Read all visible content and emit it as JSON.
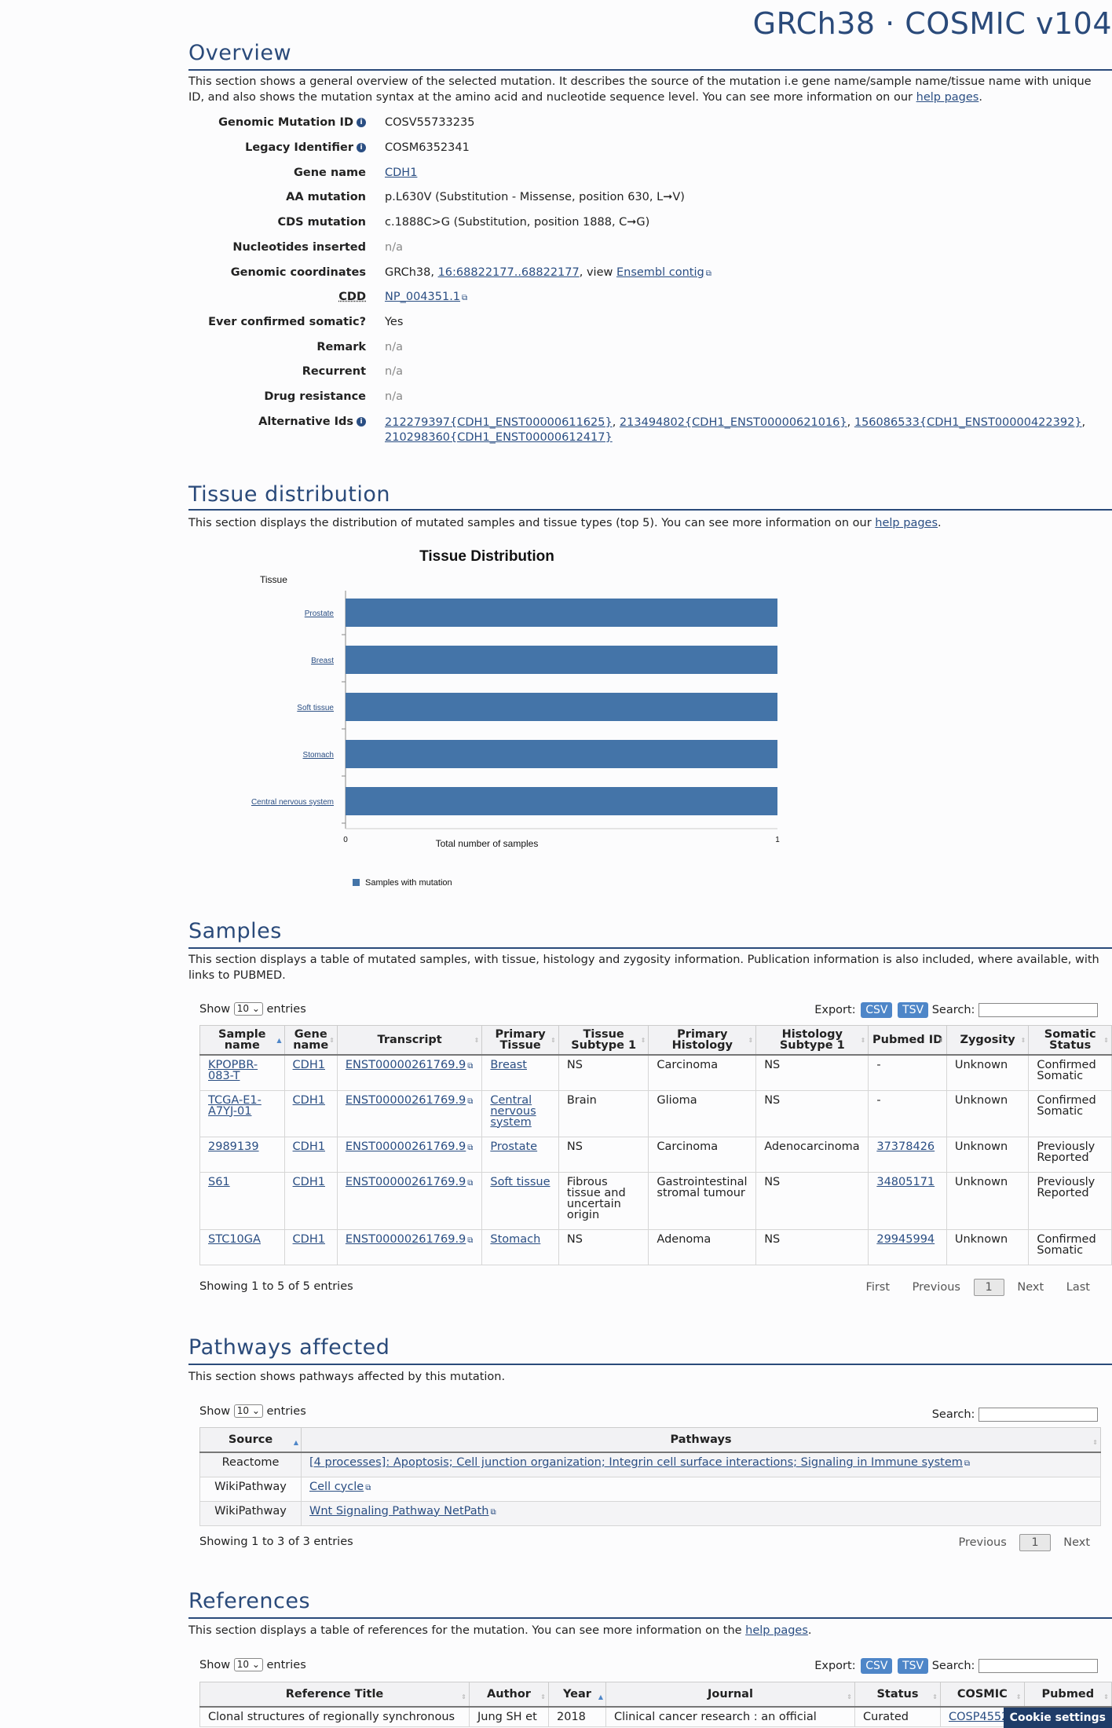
{
  "header": {
    "brand": "GRCh38 · COSMIC v104"
  },
  "overview": {
    "title": "Overview",
    "intro_part1": "This section shows a general overview of the selected mutation. It describes the source of the mutation i.e gene name/sample name/tissue name with unique ID, and also shows the mutation syntax at the amino acid and nucleotide sequence level. You can see more information on our ",
    "help_link": "help pages",
    "intro_end": ".",
    "fields": {
      "genomic_mutation_id": {
        "label": "Genomic Mutation ID",
        "value": "COSV55733235"
      },
      "legacy_identifier": {
        "label": "Legacy Identifier",
        "value": "COSM6352341"
      },
      "gene_name": {
        "label": "Gene name",
        "value": "CDH1"
      },
      "aa_mutation": {
        "label": "AA mutation",
        "value": "p.L630V (Substitution - Missense, position 630, L➞V)"
      },
      "cds_mutation": {
        "label": "CDS mutation",
        "value": "c.1888C>G (Substitution, position 1888, C➞G)"
      },
      "nucleotides_inserted": {
        "label": "Nucleotides inserted",
        "value": "n/a"
      },
      "genomic_coordinates": {
        "label": "Genomic coordinates",
        "prefix": "GRCh38, ",
        "coord_link": "16:68822177..68822177",
        "mid": ", view ",
        "ensembl_link": "Ensembl contig"
      },
      "cdd": {
        "label": "CDD",
        "value": "NP_004351.1"
      },
      "ever_confirmed_somatic": {
        "label": "Ever confirmed somatic?",
        "value": "Yes"
      },
      "remark": {
        "label": "Remark",
        "value": "n/a"
      },
      "recurrent": {
        "label": "Recurrent",
        "value": "n/a"
      },
      "drug_resistance": {
        "label": "Drug resistance",
        "value": "n/a"
      },
      "alternative_ids": {
        "label": "Alternative Ids",
        "ids": [
          "212279397{CDH1_ENST00000611625}",
          "213494802{CDH1_ENST00000621016}",
          "156086533{CDH1_ENST00000422392}",
          "210298360{CDH1_ENST00000612417}"
        ]
      }
    }
  },
  "tissue": {
    "title": "Tissue distribution",
    "intro": "This section displays the distribution of mutated samples and tissue types (top 5). You can see more information on our ",
    "help_link": "help pages",
    "intro_end": "."
  },
  "chart_data": {
    "type": "bar",
    "orientation": "horizontal",
    "title": "Tissue Distribution",
    "ylabel": "Tissue",
    "xlabel": "Total number of samples",
    "categories": [
      "Prostate",
      "Breast",
      "Soft tissue",
      "Stomach",
      "Central nervous system"
    ],
    "series": [
      {
        "name": "Samples with mutation",
        "values": [
          1,
          1,
          1,
          1,
          1
        ]
      }
    ],
    "xlim": [
      0,
      1
    ],
    "x_ticks": [
      "0",
      "1"
    ],
    "legend": "bottom-left",
    "bar_color": "#4474a8"
  },
  "samples": {
    "title": "Samples",
    "intro": "This section displays a table of mutated samples, with tissue, histology and zygosity information. Publication information is also included, where available, with links to PUBMED.",
    "show": "Show",
    "entries_select": "10",
    "entries": "entries",
    "export": "Export:",
    "csv": "CSV",
    "tsv": "TSV",
    "search": "Search:",
    "columns": [
      "Sample name",
      "Gene name",
      "Transcript",
      "Primary Tissue",
      "Tissue Subtype 1",
      "Primary Histology",
      "Histology Subtype 1",
      "Pubmed ID",
      "Zygosity",
      "Somatic Status"
    ],
    "rows": [
      {
        "sample": "KPOPBR-083-T",
        "gene": "CDH1",
        "transcript": "ENST00000261769.9",
        "tissue": "Breast",
        "subtype": "NS",
        "histology": "Carcinoma",
        "hist_sub": "NS",
        "pubmed": "-",
        "zygosity": "Unknown",
        "status": "Confirmed Somatic"
      },
      {
        "sample": "TCGA-E1-A7YJ-01",
        "gene": "CDH1",
        "transcript": "ENST00000261769.9",
        "tissue": "Central nervous system",
        "subtype": "Brain",
        "histology": "Glioma",
        "hist_sub": "NS",
        "pubmed": "-",
        "zygosity": "Unknown",
        "status": "Confirmed Somatic"
      },
      {
        "sample": "2989139",
        "gene": "CDH1",
        "transcript": "ENST00000261769.9",
        "tissue": "Prostate",
        "subtype": "NS",
        "histology": "Carcinoma",
        "hist_sub": "Adenocarcinoma",
        "pubmed": "37378426",
        "zygosity": "Unknown",
        "status": "Previously Reported"
      },
      {
        "sample": "S61",
        "gene": "CDH1",
        "transcript": "ENST00000261769.9",
        "tissue": "Soft tissue",
        "subtype": "Fibrous tissue and uncertain origin",
        "histology": "Gastrointestinal stromal tumour",
        "hist_sub": "NS",
        "pubmed": "34805171",
        "zygosity": "Unknown",
        "status": "Previously Reported"
      },
      {
        "sample": "STC10GA",
        "gene": "CDH1",
        "transcript": "ENST00000261769.9",
        "tissue": "Stomach",
        "subtype": "NS",
        "histology": "Adenoma",
        "hist_sub": "NS",
        "pubmed": "29945994",
        "zygosity": "Unknown",
        "status": "Confirmed Somatic"
      }
    ],
    "info": "Showing 1 to 5 of 5 entries",
    "pager": {
      "first": "First",
      "previous": "Previous",
      "current": "1",
      "next": "Next",
      "last": "Last"
    }
  },
  "pathways": {
    "title": "Pathways affected",
    "intro": "This section shows pathways affected by this mutation.",
    "show": "Show",
    "entries_select": "10",
    "entries": "entries",
    "search": "Search:",
    "columns": [
      "Source",
      "Pathways"
    ],
    "rows": [
      {
        "source": "Reactome",
        "pathway": "[4 processes]: Apoptosis; Cell junction organization; Integrin cell surface interactions; Signaling in Immune system"
      },
      {
        "source": "WikiPathway",
        "pathway": "Cell cycle"
      },
      {
        "source": "WikiPathway",
        "pathway": "Wnt Signaling Pathway NetPath"
      }
    ],
    "info": "Showing 1 to 3 of 3 entries",
    "pager": {
      "previous": "Previous",
      "current": "1",
      "next": "Next"
    }
  },
  "references": {
    "title": "References",
    "intro": "This section displays a table of references for the mutation. You can see more information on the ",
    "help_link": "help pages",
    "intro_end": ".",
    "show": "Show",
    "entries_select": "10",
    "entries": "entries",
    "export": "Export:",
    "csv": "CSV",
    "tsv": "TSV",
    "search": "Search:",
    "columns": [
      "Reference Title",
      "Author",
      "Year",
      "Journal",
      "Status",
      "COSMIC",
      "Pubmed"
    ],
    "row": {
      "title": "Clonal structures of regionally synchronous",
      "author": "Jung SH et",
      "year": "2018",
      "journal": "Clinical cancer research : an official",
      "status": "Curated",
      "cosmic": "COSP45527"
    }
  },
  "cookie": {
    "label": "Cookie settings"
  }
}
